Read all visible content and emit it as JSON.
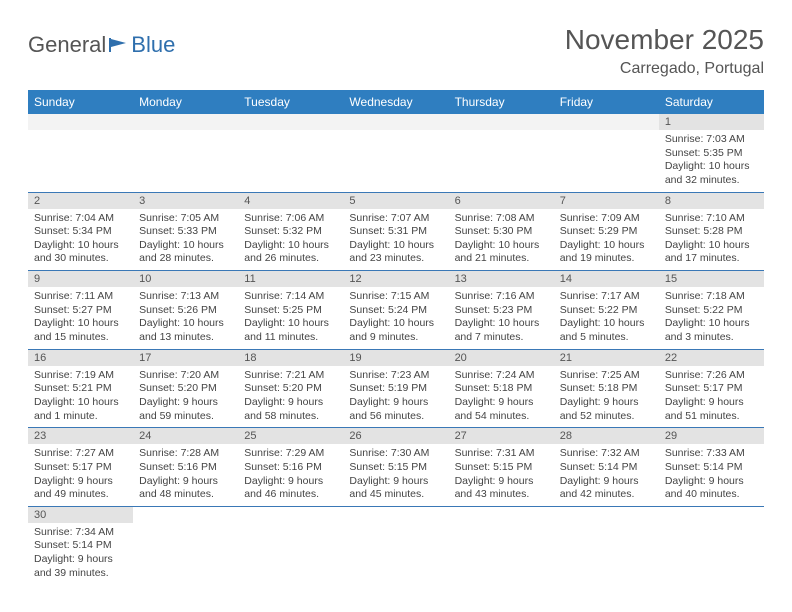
{
  "logo": {
    "part1": "General",
    "part2": "Blue"
  },
  "title": "November 2025",
  "location": "Carregado, Portugal",
  "weekdays": [
    "Sunday",
    "Monday",
    "Tuesday",
    "Wednesday",
    "Thursday",
    "Friday",
    "Saturday"
  ],
  "colors": {
    "header_bg": "#2f7ec0",
    "header_text": "#ffffff",
    "daynum_bg": "#e3e3e3",
    "cell_border": "#3a78b6",
    "title_color": "#555555",
    "logo_blue": "#2f6fad"
  },
  "weeks": [
    [
      {
        "day": "",
        "sunrise": "",
        "sunset": "",
        "daylight": ""
      },
      {
        "day": "",
        "sunrise": "",
        "sunset": "",
        "daylight": ""
      },
      {
        "day": "",
        "sunrise": "",
        "sunset": "",
        "daylight": ""
      },
      {
        "day": "",
        "sunrise": "",
        "sunset": "",
        "daylight": ""
      },
      {
        "day": "",
        "sunrise": "",
        "sunset": "",
        "daylight": ""
      },
      {
        "day": "",
        "sunrise": "",
        "sunset": "",
        "daylight": ""
      },
      {
        "day": "1",
        "sunrise": "Sunrise: 7:03 AM",
        "sunset": "Sunset: 5:35 PM",
        "daylight": "Daylight: 10 hours and 32 minutes."
      }
    ],
    [
      {
        "day": "2",
        "sunrise": "Sunrise: 7:04 AM",
        "sunset": "Sunset: 5:34 PM",
        "daylight": "Daylight: 10 hours and 30 minutes."
      },
      {
        "day": "3",
        "sunrise": "Sunrise: 7:05 AM",
        "sunset": "Sunset: 5:33 PM",
        "daylight": "Daylight: 10 hours and 28 minutes."
      },
      {
        "day": "4",
        "sunrise": "Sunrise: 7:06 AM",
        "sunset": "Sunset: 5:32 PM",
        "daylight": "Daylight: 10 hours and 26 minutes."
      },
      {
        "day": "5",
        "sunrise": "Sunrise: 7:07 AM",
        "sunset": "Sunset: 5:31 PM",
        "daylight": "Daylight: 10 hours and 23 minutes."
      },
      {
        "day": "6",
        "sunrise": "Sunrise: 7:08 AM",
        "sunset": "Sunset: 5:30 PM",
        "daylight": "Daylight: 10 hours and 21 minutes."
      },
      {
        "day": "7",
        "sunrise": "Sunrise: 7:09 AM",
        "sunset": "Sunset: 5:29 PM",
        "daylight": "Daylight: 10 hours and 19 minutes."
      },
      {
        "day": "8",
        "sunrise": "Sunrise: 7:10 AM",
        "sunset": "Sunset: 5:28 PM",
        "daylight": "Daylight: 10 hours and 17 minutes."
      }
    ],
    [
      {
        "day": "9",
        "sunrise": "Sunrise: 7:11 AM",
        "sunset": "Sunset: 5:27 PM",
        "daylight": "Daylight: 10 hours and 15 minutes."
      },
      {
        "day": "10",
        "sunrise": "Sunrise: 7:13 AM",
        "sunset": "Sunset: 5:26 PM",
        "daylight": "Daylight: 10 hours and 13 minutes."
      },
      {
        "day": "11",
        "sunrise": "Sunrise: 7:14 AM",
        "sunset": "Sunset: 5:25 PM",
        "daylight": "Daylight: 10 hours and 11 minutes."
      },
      {
        "day": "12",
        "sunrise": "Sunrise: 7:15 AM",
        "sunset": "Sunset: 5:24 PM",
        "daylight": "Daylight: 10 hours and 9 minutes."
      },
      {
        "day": "13",
        "sunrise": "Sunrise: 7:16 AM",
        "sunset": "Sunset: 5:23 PM",
        "daylight": "Daylight: 10 hours and 7 minutes."
      },
      {
        "day": "14",
        "sunrise": "Sunrise: 7:17 AM",
        "sunset": "Sunset: 5:22 PM",
        "daylight": "Daylight: 10 hours and 5 minutes."
      },
      {
        "day": "15",
        "sunrise": "Sunrise: 7:18 AM",
        "sunset": "Sunset: 5:22 PM",
        "daylight": "Daylight: 10 hours and 3 minutes."
      }
    ],
    [
      {
        "day": "16",
        "sunrise": "Sunrise: 7:19 AM",
        "sunset": "Sunset: 5:21 PM",
        "daylight": "Daylight: 10 hours and 1 minute."
      },
      {
        "day": "17",
        "sunrise": "Sunrise: 7:20 AM",
        "sunset": "Sunset: 5:20 PM",
        "daylight": "Daylight: 9 hours and 59 minutes."
      },
      {
        "day": "18",
        "sunrise": "Sunrise: 7:21 AM",
        "sunset": "Sunset: 5:20 PM",
        "daylight": "Daylight: 9 hours and 58 minutes."
      },
      {
        "day": "19",
        "sunrise": "Sunrise: 7:23 AM",
        "sunset": "Sunset: 5:19 PM",
        "daylight": "Daylight: 9 hours and 56 minutes."
      },
      {
        "day": "20",
        "sunrise": "Sunrise: 7:24 AM",
        "sunset": "Sunset: 5:18 PM",
        "daylight": "Daylight: 9 hours and 54 minutes."
      },
      {
        "day": "21",
        "sunrise": "Sunrise: 7:25 AM",
        "sunset": "Sunset: 5:18 PM",
        "daylight": "Daylight: 9 hours and 52 minutes."
      },
      {
        "day": "22",
        "sunrise": "Sunrise: 7:26 AM",
        "sunset": "Sunset: 5:17 PM",
        "daylight": "Daylight: 9 hours and 51 minutes."
      }
    ],
    [
      {
        "day": "23",
        "sunrise": "Sunrise: 7:27 AM",
        "sunset": "Sunset: 5:17 PM",
        "daylight": "Daylight: 9 hours and 49 minutes."
      },
      {
        "day": "24",
        "sunrise": "Sunrise: 7:28 AM",
        "sunset": "Sunset: 5:16 PM",
        "daylight": "Daylight: 9 hours and 48 minutes."
      },
      {
        "day": "25",
        "sunrise": "Sunrise: 7:29 AM",
        "sunset": "Sunset: 5:16 PM",
        "daylight": "Daylight: 9 hours and 46 minutes."
      },
      {
        "day": "26",
        "sunrise": "Sunrise: 7:30 AM",
        "sunset": "Sunset: 5:15 PM",
        "daylight": "Daylight: 9 hours and 45 minutes."
      },
      {
        "day": "27",
        "sunrise": "Sunrise: 7:31 AM",
        "sunset": "Sunset: 5:15 PM",
        "daylight": "Daylight: 9 hours and 43 minutes."
      },
      {
        "day": "28",
        "sunrise": "Sunrise: 7:32 AM",
        "sunset": "Sunset: 5:14 PM",
        "daylight": "Daylight: 9 hours and 42 minutes."
      },
      {
        "day": "29",
        "sunrise": "Sunrise: 7:33 AM",
        "sunset": "Sunset: 5:14 PM",
        "daylight": "Daylight: 9 hours and 40 minutes."
      }
    ],
    [
      {
        "day": "30",
        "sunrise": "Sunrise: 7:34 AM",
        "sunset": "Sunset: 5:14 PM",
        "daylight": "Daylight: 9 hours and 39 minutes."
      },
      {
        "day": "",
        "sunrise": "",
        "sunset": "",
        "daylight": ""
      },
      {
        "day": "",
        "sunrise": "",
        "sunset": "",
        "daylight": ""
      },
      {
        "day": "",
        "sunrise": "",
        "sunset": "",
        "daylight": ""
      },
      {
        "day": "",
        "sunrise": "",
        "sunset": "",
        "daylight": ""
      },
      {
        "day": "",
        "sunrise": "",
        "sunset": "",
        "daylight": ""
      },
      {
        "day": "",
        "sunrise": "",
        "sunset": "",
        "daylight": ""
      }
    ]
  ]
}
